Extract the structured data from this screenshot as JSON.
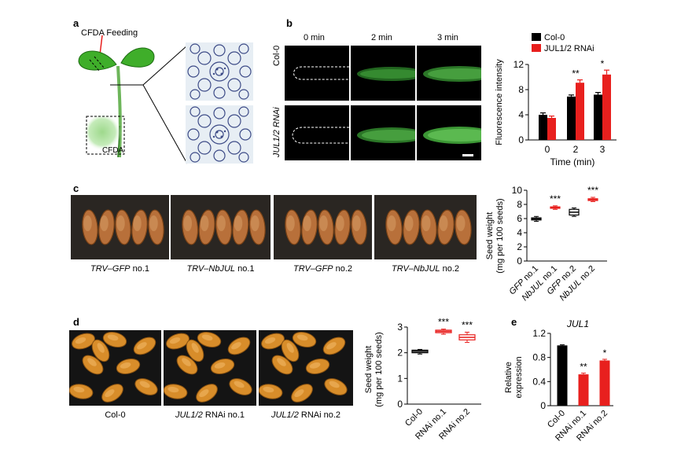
{
  "panels": {
    "a": {
      "label": "a",
      "feeding_label": "CFDA Feeding",
      "cfda_label": "CFDA"
    },
    "b": {
      "label": "b",
      "times": [
        "0 min",
        "2 min",
        "3 min"
      ],
      "rows": [
        "Col-0",
        "JUL1/2 RNAi"
      ]
    },
    "c": {
      "label": "c",
      "photo_labels": [
        {
          "prefix": "TRV–",
          "gene": "GFP",
          "suffix": " no.1"
        },
        {
          "prefix": "TRV–",
          "gene": "NbJUL",
          "suffix": " no.1"
        },
        {
          "prefix": "TRV–",
          "gene": "GFP",
          "suffix": " no.2"
        },
        {
          "prefix": "TRV–",
          "gene": "NbJUL",
          "suffix": " no.2"
        }
      ]
    },
    "d": {
      "label": "d",
      "photo_labels": [
        {
          "gene": "",
          "rest": "Col-0"
        },
        {
          "gene": "JUL1/2",
          "rest": " RNAi no.1"
        },
        {
          "gene": "JUL1/2",
          "rest": " RNAi no.2"
        }
      ]
    },
    "e": {
      "label": "e"
    }
  },
  "colors": {
    "black": "#000000",
    "red": "#e8201e",
    "green": "#3fae2a"
  },
  "chart_data": [
    {
      "id": "b",
      "type": "bar",
      "x": [
        0,
        2,
        3
      ],
      "series": [
        {
          "name": "Col-0",
          "color": "#000000",
          "values": [
            4.0,
            6.9,
            7.2
          ],
          "errors": [
            0.3,
            0.25,
            0.35
          ]
        },
        {
          "name": "JUL1/2 RNAi",
          "color": "#e8201e",
          "values": [
            3.5,
            9.1,
            10.4
          ],
          "errors": [
            0.3,
            0.45,
            0.7
          ]
        }
      ],
      "annotations": [
        {
          "x": 2,
          "text": "**"
        },
        {
          "x": 3,
          "text": "*"
        }
      ],
      "xlabel": "Time (min)",
      "ylabel": "Fluorescence intensity",
      "ylim": [
        0,
        12
      ],
      "yticks": [
        0,
        4,
        8,
        12
      ],
      "legend_position": "top"
    },
    {
      "id": "c",
      "type": "box",
      "categories": [
        {
          "gene": "GFP",
          "suffix": " no.1"
        },
        {
          "gene": "NbJUL",
          "suffix": " no.1"
        },
        {
          "gene": "GFP",
          "suffix": " no.2"
        },
        {
          "gene": "NbJUL",
          "suffix": " no.2"
        }
      ],
      "boxes": [
        {
          "min": 5.6,
          "q1": 5.8,
          "median": 5.95,
          "q3": 6.1,
          "max": 6.3,
          "color": "#000000"
        },
        {
          "min": 7.3,
          "q1": 7.45,
          "median": 7.55,
          "q3": 7.65,
          "max": 7.8,
          "color": "#e8201e"
        },
        {
          "min": 6.3,
          "q1": 6.5,
          "median": 6.9,
          "q3": 7.3,
          "max": 7.5,
          "color": "#000000"
        },
        {
          "min": 8.4,
          "q1": 8.55,
          "median": 8.7,
          "q3": 8.8,
          "max": 9.0,
          "color": "#e8201e"
        }
      ],
      "annotations": [
        {
          "index": 1,
          "text": "***"
        },
        {
          "index": 3,
          "text": "***"
        }
      ],
      "ylabel_lines": [
        "Seed weight",
        "(mg per 100 seeds)"
      ],
      "ylim": [
        0,
        10
      ],
      "yticks": [
        0,
        2,
        4,
        6,
        8,
        10
      ]
    },
    {
      "id": "d",
      "type": "box",
      "categories": [
        "Col-0",
        "RNAi no.1",
        "RNAi no.2"
      ],
      "boxes": [
        {
          "min": 1.95,
          "q1": 2.0,
          "median": 2.05,
          "q3": 2.1,
          "max": 2.13,
          "color": "#000000"
        },
        {
          "min": 2.72,
          "q1": 2.78,
          "median": 2.83,
          "q3": 2.88,
          "max": 2.92,
          "color": "#e8201e"
        },
        {
          "min": 2.4,
          "q1": 2.5,
          "median": 2.6,
          "q3": 2.7,
          "max": 2.8,
          "color": "#e8201e"
        }
      ],
      "annotations": [
        {
          "index": 1,
          "text": "***"
        },
        {
          "index": 2,
          "text": "***"
        }
      ],
      "ylabel_lines": [
        "Seed weight",
        "(mg per 100 seeds)"
      ],
      "ylim": [
        0,
        3
      ],
      "yticks": [
        0,
        1,
        2,
        3
      ]
    },
    {
      "id": "e",
      "type": "bar",
      "title": "JUL1",
      "categories": [
        "Col-0",
        "RNAi no.1",
        "RNAi no.2"
      ],
      "values": [
        1.0,
        0.52,
        0.75
      ],
      "errors": [
        0.01,
        0.02,
        0.02
      ],
      "colors": [
        "#000000",
        "#e8201e",
        "#e8201e"
      ],
      "annotations": [
        {
          "index": 1,
          "text": "**"
        },
        {
          "index": 2,
          "text": "*"
        }
      ],
      "ylabel_lines": [
        "Relative",
        "expression"
      ],
      "ylim": [
        0,
        1.2
      ],
      "yticks": [
        0,
        0.4,
        0.8,
        1.2
      ]
    }
  ]
}
